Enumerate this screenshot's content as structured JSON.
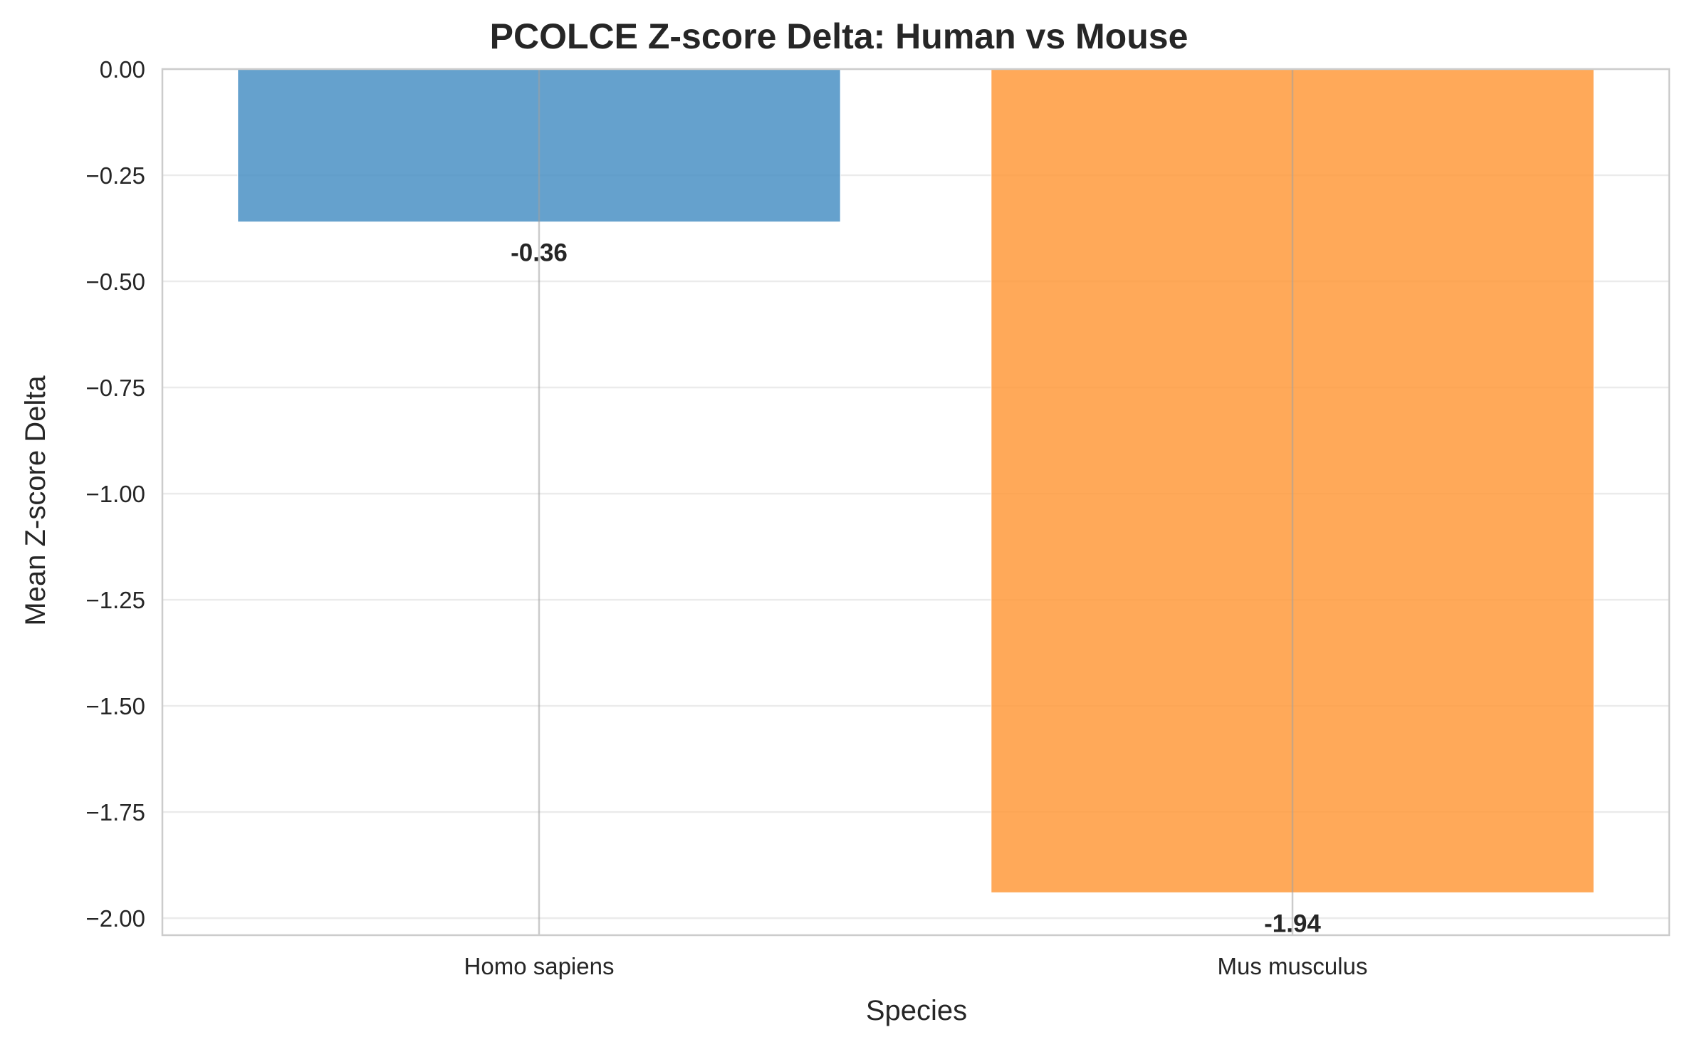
{
  "chart_data": {
    "type": "bar",
    "title": "PCOLCE Z-score Delta: Human vs Mouse",
    "xlabel": "Species",
    "ylabel": "Mean Z-score Delta",
    "categories": [
      "Homo sapiens",
      "Mus musculus"
    ],
    "values": [
      -0.36,
      -1.94
    ],
    "value_labels": [
      "-0.36",
      "-1.94"
    ],
    "colors": [
      "#4a90c4",
      "#ff9a3c"
    ],
    "ylim": [
      -2.04,
      0.0
    ],
    "yticks": [
      0.0,
      -0.25,
      -0.5,
      -0.75,
      -1.0,
      -1.25,
      -1.5,
      -1.75,
      -2.0
    ],
    "ytick_labels": [
      "0.00",
      "−0.25",
      "−0.50",
      "−0.75",
      "−1.00",
      "−1.25",
      "−1.50",
      "−1.75",
      "−2.00"
    ],
    "grid": true,
    "legend": false
  }
}
